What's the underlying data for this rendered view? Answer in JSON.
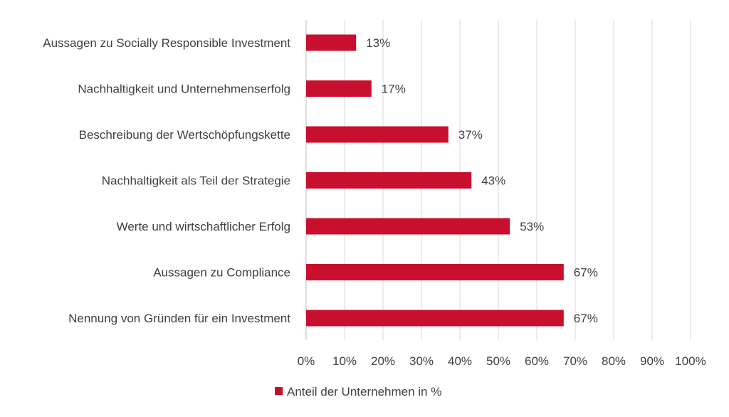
{
  "chart_data": {
    "type": "bar",
    "orientation": "horizontal",
    "categories": [
      "Aussagen zu Socially Responsible Investment",
      "Nachhaltigkeit und Unternehmenserfolg",
      "Beschreibung der Wertschöpfungskette",
      "Nachhaltigkeit als Teil der Strategie",
      "Werte und wirtschaftlicher Erfolg",
      "Aussagen zu Compliance",
      "Nennung von Gründen für ein Investment"
    ],
    "series": [
      {
        "name": "Anteil der Unternehmen in %",
        "values": [
          13,
          17,
          37,
          43,
          53,
          67,
          67
        ],
        "data_labels": [
          "13%",
          "17%",
          "37%",
          "43%",
          "53%",
          "67%",
          "67%"
        ],
        "color": "#c8102e"
      }
    ],
    "xlim": [
      0,
      100
    ],
    "x_ticks": [
      0,
      10,
      20,
      30,
      40,
      50,
      60,
      70,
      80,
      90,
      100
    ],
    "x_tick_labels": [
      "0%",
      "10%",
      "20%",
      "30%",
      "40%",
      "50%",
      "60%",
      "70%",
      "80%",
      "90%",
      "100%"
    ],
    "grid": "vertical",
    "legend": "bottom-center"
  }
}
